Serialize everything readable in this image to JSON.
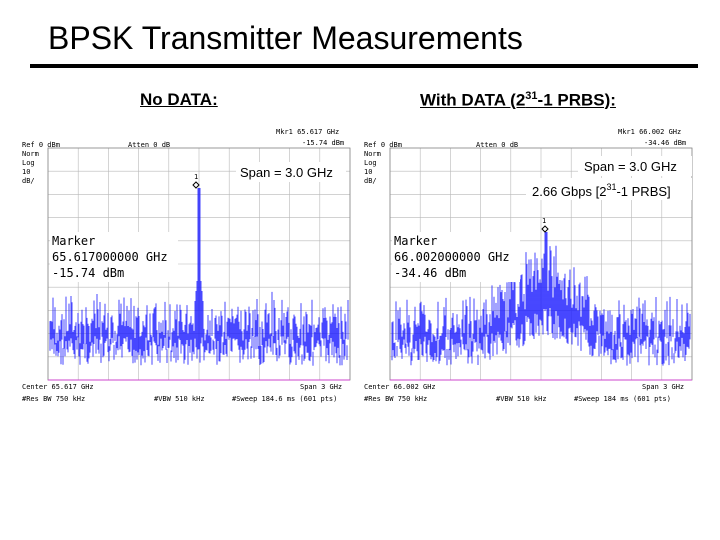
{
  "slide": {
    "title": "BPSK Transmitter Measurements",
    "caption_left": "No DATA:",
    "caption_right_prefix": "With DATA (2",
    "caption_right_sup": "31",
    "caption_right_suffix": "-1 PRBS):"
  },
  "left": {
    "ref": "Ref 0 dBm",
    "norm": "Norm",
    "log": "Log",
    "div": "10",
    "unit": "dB/",
    "atten": "Atten 0 dB",
    "mkr_top": "Mkr1  65.617 GHz",
    "mkr_top_val": "-15.74 dBm",
    "span_box": "Span = 3.0 GHz",
    "marker_label": "Marker",
    "marker_freq": "65.617000000 GHz",
    "marker_val": "-15.74 dBm",
    "center": "Center 65.617 GHz",
    "span_bottom": "Span 3 GHz",
    "res_bw": "#Res BW 750 kHz",
    "vbw": "#VBW 510 kHz",
    "sweep": "#Sweep 184.6 ms (601 pts)",
    "marker_num": "1"
  },
  "right": {
    "ref": "Ref 0 dBm",
    "norm": "Norm",
    "log": "Log",
    "div": "10",
    "unit": "dB/",
    "atten": "Atten 0 dB",
    "mkr_top": "Mkr1  66.002 GHz",
    "mkr_top_val": "-34.46 dBm",
    "span_box": "Span = 3.0 GHz",
    "rate_prefix": "2.66 Gbps [2",
    "rate_sup": "31",
    "rate_suffix": "-1 PRBS]",
    "marker_label": "Marker",
    "marker_freq": "66.002000000 GHz",
    "marker_val": "-34.46 dBm",
    "center": "Center 66.002 GHz",
    "span_bottom": "Span 3 GHz",
    "res_bw": "#Res BW 750 kHz",
    "vbw": "#VBW 510 kHz",
    "sweep": "#Sweep 184 ms (601 pts)",
    "marker_num": "1"
  },
  "colors": {
    "trace": "#1a1aff",
    "grid": "#b8b8b8",
    "marker_line": "#cc44cc"
  }
}
